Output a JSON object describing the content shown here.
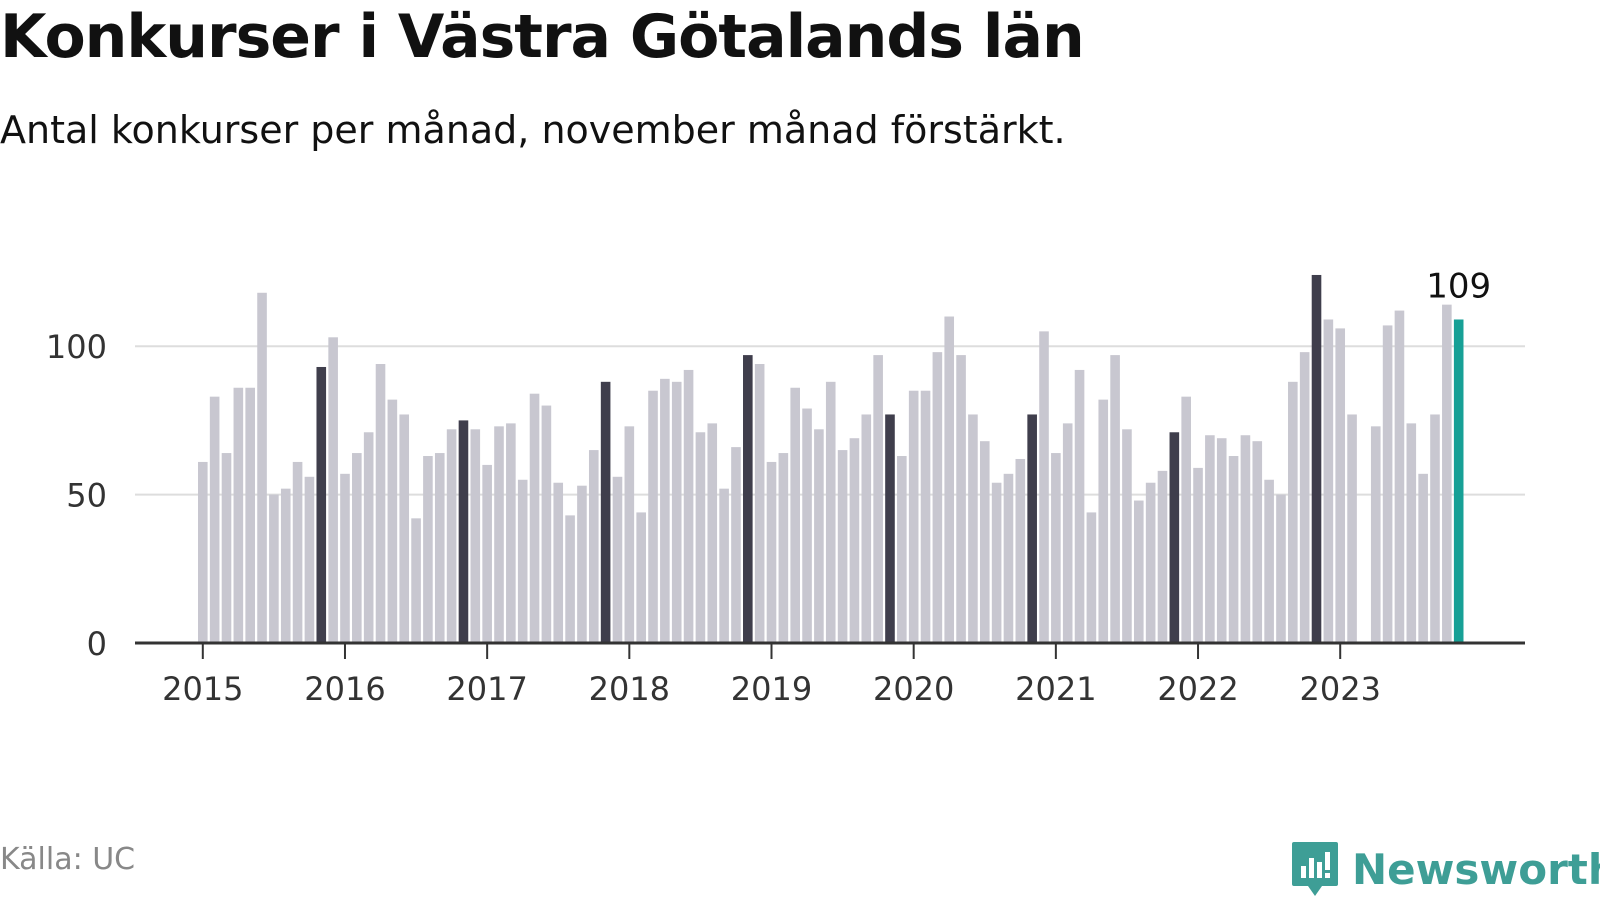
{
  "title": "Konkurser i Västra Götalands län",
  "subtitle": "Antal konkurser per månad, november månad förstärkt.",
  "source": "Källa: UC",
  "brand": "Newsworthy",
  "colors": {
    "bar": "#c8c7d0",
    "highlight": "#3f3e4c",
    "latest": "#17a096",
    "grid": "#dddddd",
    "axis": "#333333",
    "brand": "#3e9e96"
  },
  "chart_data": {
    "type": "bar",
    "start": "2015-01",
    "highlight_month": "November",
    "x_tick_labels": [
      "2015",
      "2016",
      "2017",
      "2018",
      "2019",
      "2020",
      "2021",
      "2022",
      "2023"
    ],
    "y_ticks": [
      0,
      50,
      100
    ],
    "ylim": [
      0,
      125
    ],
    "grid": true,
    "values": [
      61,
      83,
      64,
      86,
      86,
      118,
      50,
      52,
      61,
      56,
      93,
      103,
      57,
      64,
      71,
      94,
      82,
      77,
      42,
      63,
      64,
      72,
      75,
      72,
      60,
      73,
      74,
      55,
      84,
      80,
      54,
      43,
      53,
      65,
      88,
      56,
      73,
      44,
      85,
      89,
      88,
      92,
      71,
      74,
      52,
      66,
      97,
      94,
      61,
      64,
      86,
      79,
      72,
      88,
      65,
      69,
      77,
      97,
      77,
      63,
      85,
      85,
      98,
      110,
      97,
      77,
      68,
      54,
      57,
      62,
      77,
      105,
      64,
      74,
      92,
      44,
      82,
      97,
      72,
      48,
      54,
      58,
      71,
      83,
      59,
      70,
      69,
      63,
      70,
      68,
      55,
      50,
      88,
      98,
      124,
      109,
      106,
      77,
      null,
      73,
      107,
      112,
      74,
      57,
      77,
      114,
      109
    ],
    "annotation": "109"
  }
}
